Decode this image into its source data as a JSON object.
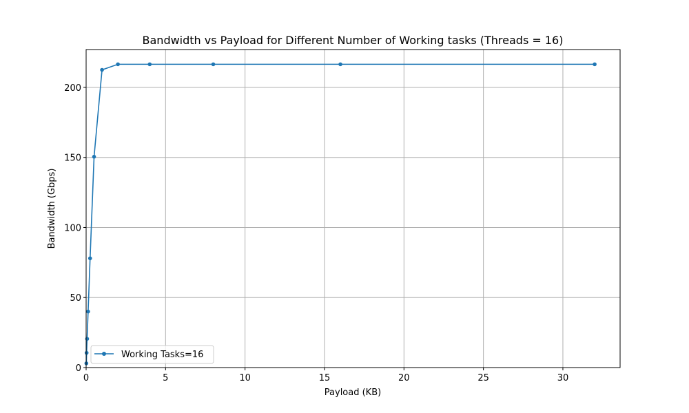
{
  "chart_data": {
    "type": "line",
    "title": "Bandwidth vs Payload for Different Number of Working tasks (Threads = 16)",
    "xlabel": "Payload (KB)",
    "ylabel": "Bandwidth (Gbps)",
    "xlim": [
      0,
      33.6
    ],
    "ylim": [
      0,
      227
    ],
    "xticks": [
      0,
      5,
      10,
      15,
      20,
      25,
      30
    ],
    "yticks": [
      0,
      50,
      100,
      150,
      200
    ],
    "grid": true,
    "legend_position": "lower-left",
    "series": [
      {
        "name": "Working Tasks=16",
        "color": "#1f77b4",
        "marker": "circle",
        "x": [
          0.015625,
          0.03125,
          0.0625,
          0.125,
          0.25,
          0.5,
          1,
          2,
          4,
          8,
          16,
          32
        ],
        "y": [
          3,
          10.5,
          20.5,
          40,
          78,
          150.5,
          212.5,
          216.5,
          216.5,
          216.5,
          216.5,
          216.5
        ]
      }
    ]
  }
}
